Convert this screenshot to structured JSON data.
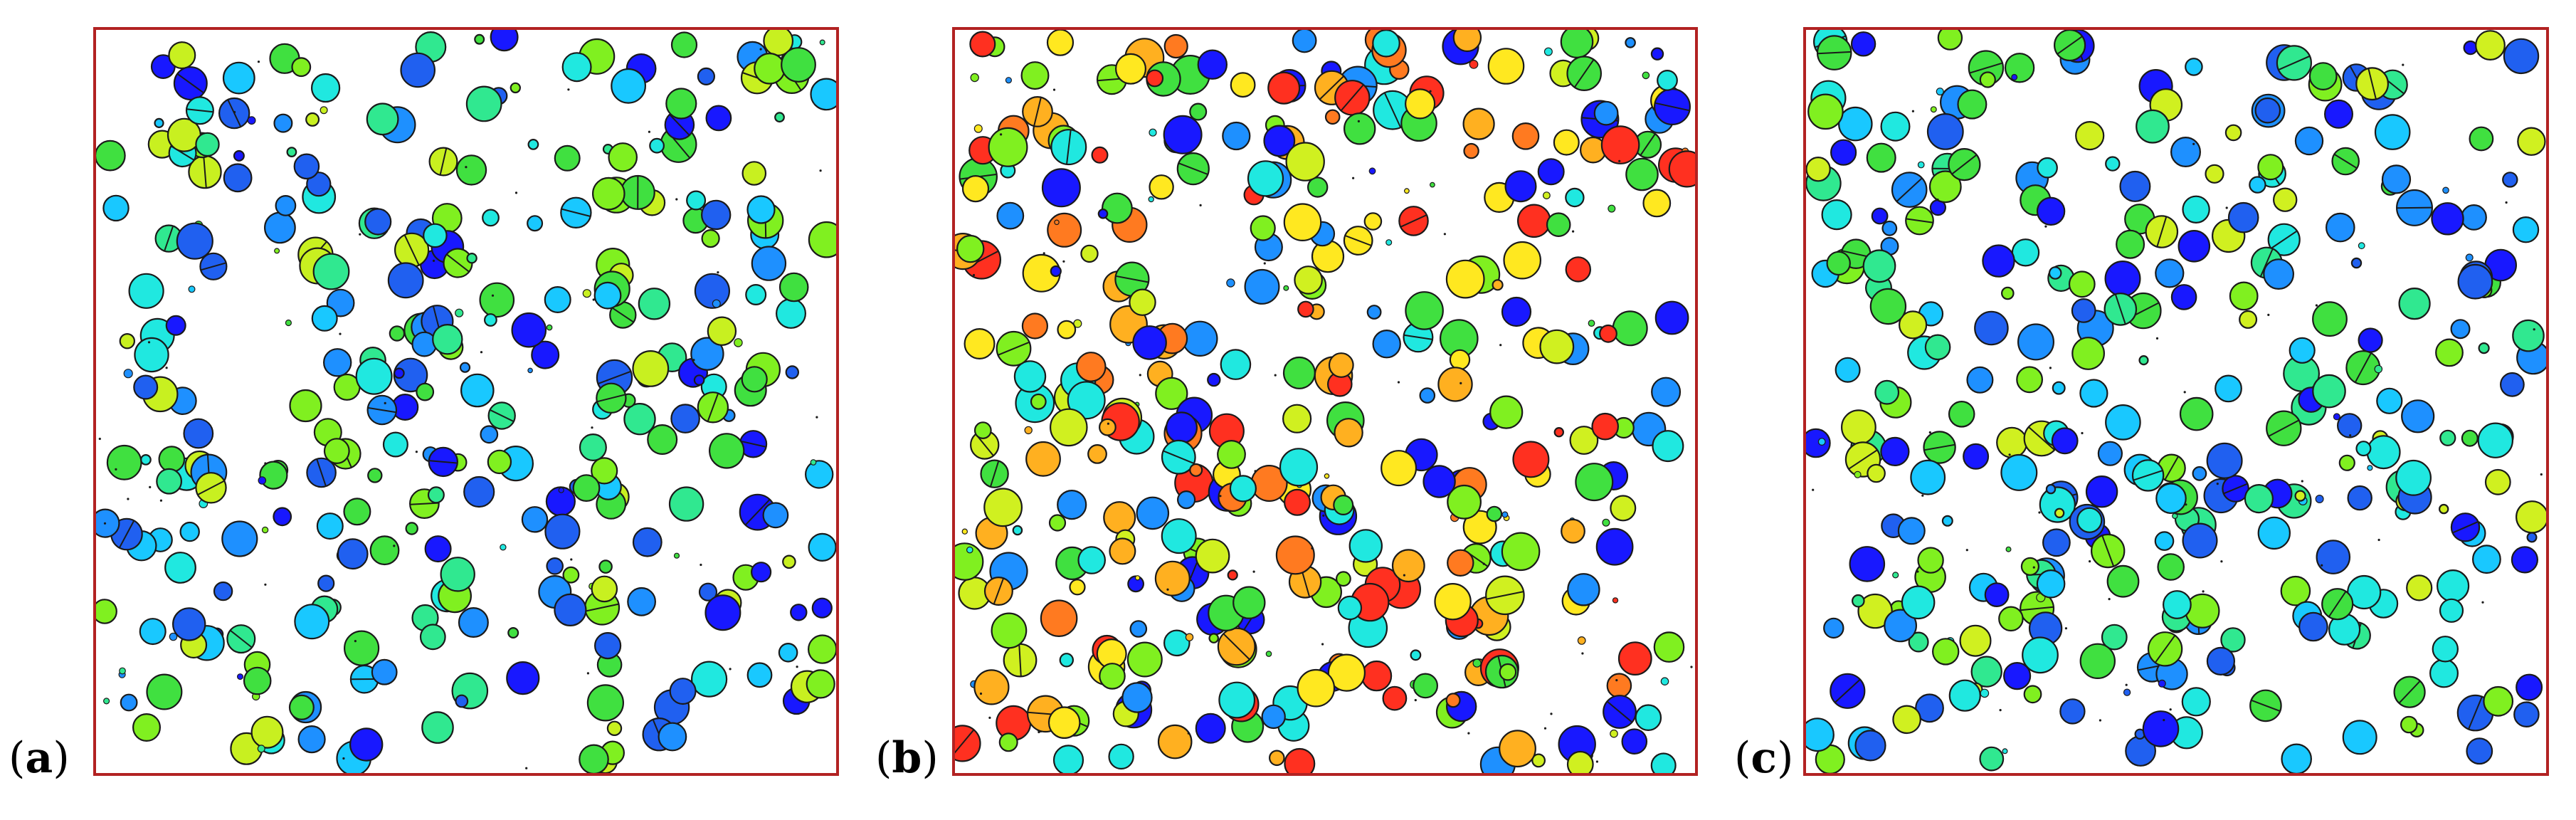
{
  "panels": [
    {
      "id": "a",
      "label_open": "(",
      "label_letter": "a",
      "label_close": ")"
    },
    {
      "id": "b",
      "label_open": "(",
      "label_letter": "b",
      "label_close": ")"
    },
    {
      "id": "c",
      "label_open": "(",
      "label_letter": "c",
      "label_close": ")"
    }
  ],
  "colors": {
    "frame": "#b22222",
    "outline": "#1a1a1a",
    "palette_a": [
      "#1818ff",
      "#2060f0",
      "#1e90ff",
      "#19c8ff",
      "#20e8e0",
      "#30e890",
      "#40e040",
      "#80f020",
      "#c8f020"
    ],
    "palette_b": [
      "#1818ff",
      "#1e90ff",
      "#20e8e0",
      "#40e040",
      "#80f020",
      "#d0f020",
      "#ffe820",
      "#ffb020",
      "#ff7a20",
      "#ff3020"
    ],
    "palette_c": [
      "#1818ff",
      "#2060f0",
      "#1e90ff",
      "#19c8ff",
      "#20e8e0",
      "#30e890",
      "#40e040",
      "#80f020",
      "#d0f020"
    ]
  }
}
